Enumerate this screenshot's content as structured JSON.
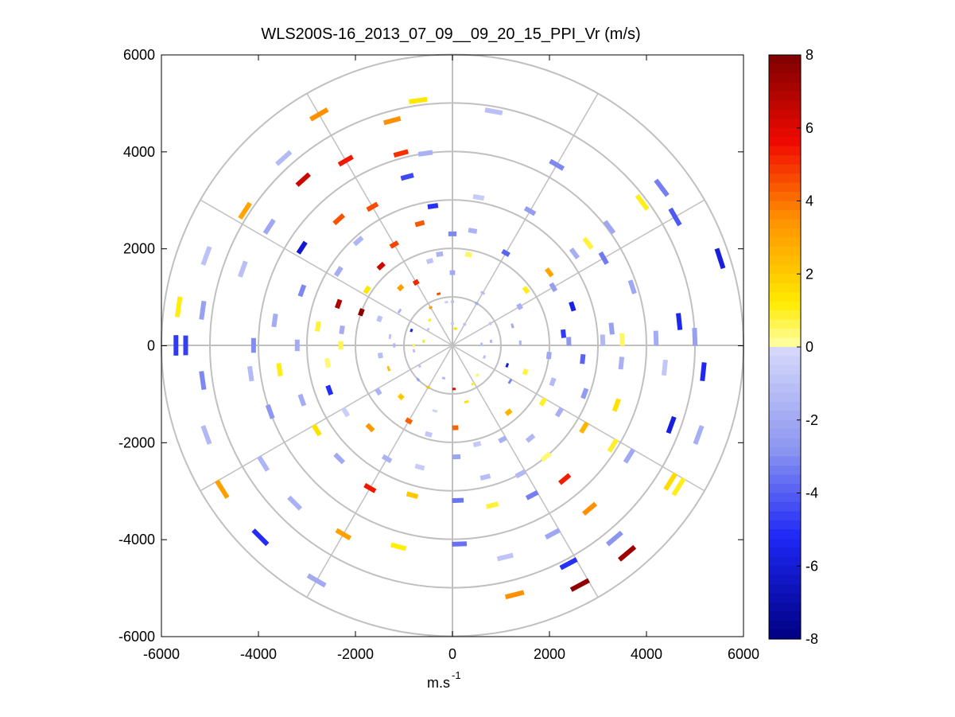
{
  "chart_data": {
    "type": "ppi_polar_scatter",
    "title": "WLS200S-16_2013_07_09__09_20_15_PPI_Vr (m/s)",
    "xlabel": "m.s",
    "xlabel_superscript": "-1",
    "ylabel": "",
    "xlim": [
      -6000,
      6000
    ],
    "ylim": [
      -6000,
      6000
    ],
    "x_ticks": [
      -6000,
      -4000,
      -2000,
      0,
      2000,
      4000,
      6000
    ],
    "y_ticks": [
      -6000,
      -4000,
      -2000,
      0,
      2000,
      4000,
      6000
    ],
    "x_tick_labels": [
      "-6000",
      "-4000",
      "-2000",
      "0",
      "2000",
      "4000",
      "6000"
    ],
    "y_tick_labels": [
      "-6000",
      "-4000",
      "-2000",
      "0",
      "2000",
      "4000",
      "6000"
    ],
    "polar_grid": {
      "range_rings": [
        1000,
        2000,
        3000,
        4000,
        5000,
        6000
      ],
      "spokes_deg": [
        0,
        30,
        60,
        90,
        120,
        150,
        180,
        210,
        240,
        270,
        300,
        330
      ]
    },
    "colorbar": {
      "min": -8,
      "max": 8,
      "ticks": [
        8,
        6,
        4,
        2,
        0,
        -2,
        -4,
        -6,
        -8
      ],
      "tick_labels": [
        "8",
        "6",
        "4",
        "2",
        "0",
        "-2",
        "-4",
        "-6",
        "-8"
      ],
      "levels": 64
    },
    "beams": [
      {
        "az": 0,
        "points": [
          [
            0.45,
            -0.6
          ],
          [
            0.9,
            -1.2
          ],
          [
            1.5,
            -2.0
          ],
          [
            2.3,
            -3.1
          ]
        ]
      },
      {
        "az": 10,
        "points": [
          [
            0.35,
            1.5
          ],
          [
            1.9,
            0.5
          ],
          [
            2.4,
            -1.6
          ],
          [
            3.1,
            -0.6
          ],
          [
            4.9,
            -1.1
          ]
        ]
      },
      {
        "az": 30,
        "points": [
          [
            0.5,
            -1.0
          ],
          [
            1.0,
            -2.0
          ],
          [
            1.25,
            -1.2
          ],
          [
            2.2,
            -3.9
          ],
          [
            3.2,
            -2.5
          ],
          [
            4.3,
            -3.1
          ]
        ]
      },
      {
        "az": 53,
        "points": [
          [
            1.9,
            1.0
          ],
          [
            2.5,
            3.0
          ],
          [
            3.15,
            -1.8
          ],
          [
            3.5,
            0.8
          ],
          [
            4.05,
            -2.1
          ],
          [
            4.9,
            1.0
          ],
          [
            5.4,
            -3.3
          ]
        ]
      },
      {
        "az": 60,
        "points": [
          [
            0.9,
            -0.8
          ],
          [
            1.6,
            -1.7
          ],
          [
            2.4,
            -2.5
          ],
          [
            3.6,
            -3.4
          ],
          [
            5.3,
            -4.1
          ]
        ]
      },
      {
        "az": 72,
        "points": [
          [
            1.3,
            -2.0
          ],
          [
            2.6,
            -5.6
          ],
          [
            3.9,
            -2.1
          ],
          [
            5.8,
            -5.8
          ]
        ]
      },
      {
        "az": 84,
        "points": [
          [
            0.8,
            -1.5
          ],
          [
            2.3,
            -4.8
          ],
          [
            3.3,
            -2.3
          ],
          [
            4.7,
            -5.3
          ]
        ]
      },
      {
        "az": 88,
        "points": [
          [
            0.6,
            -1.2
          ],
          [
            1.4,
            -1.6
          ],
          [
            2.4,
            -2.7
          ],
          [
            3.1,
            -1.4
          ],
          [
            3.5,
            0.5
          ],
          [
            4.2,
            -1.9
          ],
          [
            5.0,
            -2.4
          ]
        ]
      },
      {
        "az": 96,
        "points": [
          [
            2.0,
            -2.1
          ],
          [
            2.7,
            -3.9
          ],
          [
            3.5,
            -1.7
          ],
          [
            4.4,
            -0.8
          ],
          [
            5.2,
            -5.2
          ]
        ]
      },
      {
        "az": 110,
        "points": [
          [
            0.7,
            -1.2
          ],
          [
            1.2,
            -6.1
          ],
          [
            1.6,
            0.7
          ],
          [
            2.2,
            -1.3
          ],
          [
            2.9,
            -2.6
          ],
          [
            3.6,
            1.4
          ],
          [
            4.8,
            -5.8
          ],
          [
            5.4,
            -1.8
          ]
        ]
      },
      {
        "az": 122,
        "points": [
          [
            1.4,
            -3.2
          ],
          [
            2.2,
            0.9
          ],
          [
            2.6,
            -1.8
          ],
          [
            3.2,
            2.6
          ],
          [
            3.9,
            0.9
          ],
          [
            4.3,
            -2.0
          ],
          [
            5.3,
            1.6
          ],
          [
            5.5,
            1.0
          ]
        ]
      },
      {
        "az": 140,
        "points": [
          [
            0.8,
            0.5
          ],
          [
            1.8,
            2.6
          ],
          [
            2.5,
            -1.4
          ],
          [
            3.0,
            0.4
          ],
          [
            3.6,
            5.3
          ],
          [
            4.4,
            3.5
          ],
          [
            5.2,
            -2.8
          ],
          [
            5.6,
            7.3
          ]
        ]
      },
      {
        "az": 152,
        "points": [
          [
            0.9,
            1.0
          ],
          [
            2.2,
            -1.7
          ],
          [
            3.0,
            -1.4
          ],
          [
            3.5,
            -3.3
          ],
          [
            4.4,
            -2.1
          ],
          [
            5.1,
            -5.0
          ],
          [
            5.6,
            7.6
          ]
        ]
      },
      {
        "az": 166,
        "points": [
          [
            1.2,
            1.5
          ],
          [
            2.1,
            -0.7
          ],
          [
            2.8,
            -1.2
          ],
          [
            3.4,
            0.8
          ],
          [
            4.5,
            -0.9
          ],
          [
            5.3,
            3.5
          ]
        ]
      },
      {
        "az": 178,
        "points": [
          [
            0.9,
            6.0
          ],
          [
            1.7,
            4.2
          ],
          [
            2.3,
            -2.2
          ],
          [
            3.2,
            -3.5
          ],
          [
            4.1,
            -3.6
          ]
        ]
      },
      {
        "az": 195,
        "points": [
          [
            0.7,
            -1.3
          ],
          [
            1.4,
            -0.3
          ],
          [
            1.9,
            -0.8
          ],
          [
            2.6,
            -0.6
          ],
          [
            3.2,
            2.1
          ],
          [
            4.3,
            1.1
          ]
        ]
      },
      {
        "az": 210,
        "points": [
          [
            1.0,
            2.3
          ],
          [
            1.8,
            4.3
          ],
          [
            2.7,
            -1.6
          ],
          [
            3.4,
            5.4
          ],
          [
            4.5,
            3.1
          ],
          [
            5.6,
            -2.0
          ]
        ]
      },
      {
        "az": 225,
        "points": [
          [
            1.0,
            -2.3
          ],
          [
            1.5,
            2.1
          ],
          [
            2.4,
            3.3
          ],
          [
            3.3,
            -2.0
          ],
          [
            4.6,
            -1.7
          ],
          [
            5.6,
            -5.1
          ]
        ]
      },
      {
        "az": 238,
        "points": [
          [
            0.8,
            -1.0
          ],
          [
            1.8,
            -1.6
          ],
          [
            2.6,
            -0.5
          ],
          [
            3.3,
            1.4
          ],
          [
            4.6,
            -1.5
          ],
          [
            5.6,
            3.1
          ]
        ]
      },
      {
        "az": 250,
        "points": [
          [
            1.4,
            2.4
          ],
          [
            2.7,
            -5.1
          ],
          [
            3.3,
            -1.9
          ],
          [
            4.0,
            -2.7
          ],
          [
            5.4,
            -1.4
          ]
        ]
      },
      {
        "az": 262,
        "points": [
          [
            0.8,
            -1.1
          ],
          [
            1.5,
            -1.2
          ],
          [
            2.6,
            0.4
          ],
          [
            3.6,
            1.1
          ],
          [
            4.2,
            -1.3
          ],
          [
            5.2,
            -3.1
          ]
        ]
      },
      {
        "az": 270,
        "points": [
          [
            0.8,
            0.6
          ],
          [
            1.2,
            -1.4
          ],
          [
            2.3,
            0.6
          ],
          [
            3.2,
            -1.9
          ],
          [
            4.1,
            -3.0
          ],
          [
            5.5,
            -4.7
          ],
          [
            5.7,
            -4.8
          ]
        ]
      },
      {
        "az": 278,
        "points": [
          [
            0.6,
            1.1
          ],
          [
            1.3,
            -1.0
          ],
          [
            2.3,
            -1.9
          ],
          [
            2.8,
            0.8
          ],
          [
            3.7,
            -1.9
          ],
          [
            5.2,
            -2.4
          ],
          [
            5.7,
            1.1
          ]
        ]
      },
      {
        "az": 290,
        "points": [
          [
            0.9,
            -5.5
          ],
          [
            1.6,
            -1.0
          ],
          [
            2.0,
            7.7
          ],
          [
            2.5,
            7.0
          ],
          [
            3.3,
            -3.1
          ],
          [
            4.6,
            -1.1
          ],
          [
            5.4,
            -1.0
          ]
        ]
      },
      {
        "az": 303,
        "points": [
          [
            0.6,
            -0.8
          ],
          [
            1.3,
            -1.6
          ],
          [
            2.1,
            1.3
          ],
          [
            2.8,
            -1.9
          ],
          [
            3.7,
            -6.2
          ],
          [
            4.5,
            -2.1
          ],
          [
            5.1,
            3.0
          ]
        ]
      },
      {
        "az": 318,
        "points": [
          [
            0.7,
            1.0
          ],
          [
            1.6,
            3.1
          ],
          [
            2.2,
            6.3
          ],
          [
            2.9,
            -1.5
          ],
          [
            3.5,
            4.5
          ],
          [
            4.6,
            6.4
          ],
          [
            5.2,
            -1.3
          ]
        ]
      },
      {
        "az": 330,
        "points": [
          [
            0.9,
            3.2
          ],
          [
            1.5,
            5.2
          ],
          [
            2.4,
            4.7
          ],
          [
            3.3,
            4.6
          ],
          [
            4.4,
            5.4
          ],
          [
            5.5,
            3.5
          ]
        ]
      },
      {
        "az": 345,
        "points": [
          [
            1.1,
            4.5
          ],
          [
            1.8,
            -0.9
          ],
          [
            2.6,
            4.4
          ],
          [
            3.6,
            -4.5
          ],
          [
            4.1,
            5.0
          ],
          [
            4.8,
            3.5
          ]
        ]
      },
      {
        "az": 352,
        "points": [
          [
            0.9,
            -0.5
          ],
          [
            1.9,
            -1.6
          ],
          [
            2.9,
            -5.0
          ],
          [
            4.0,
            -1.7
          ],
          [
            5.1,
            1.3
          ]
        ]
      }
    ]
  }
}
